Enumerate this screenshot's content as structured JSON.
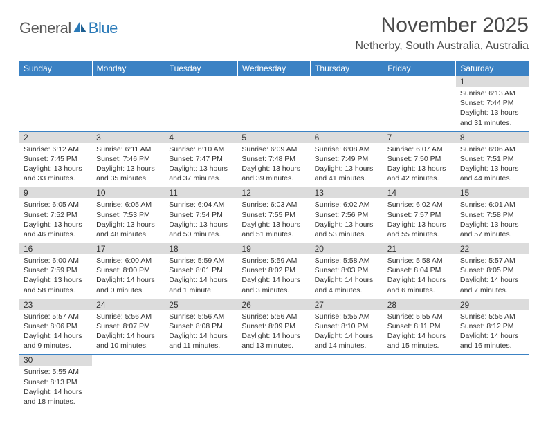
{
  "logo": {
    "general": "General",
    "blue": "Blue"
  },
  "title": "November 2025",
  "location": "Netherby, South Australia, Australia",
  "weekdays": [
    "Sunday",
    "Monday",
    "Tuesday",
    "Wednesday",
    "Thursday",
    "Friday",
    "Saturday"
  ],
  "colors": {
    "header_bg": "#3b82c4",
    "header_text": "#ffffff",
    "daynum_bg": "#dcdcdc",
    "border": "#3b82c4",
    "logo_gray": "#5a5a5a",
    "logo_blue": "#2a7ab8"
  },
  "weeks": [
    {
      "nums": [
        "",
        "",
        "",
        "",
        "",
        "",
        "1"
      ],
      "cells": [
        null,
        null,
        null,
        null,
        null,
        null,
        {
          "sunrise": "Sunrise: 6:13 AM",
          "sunset": "Sunset: 7:44 PM",
          "daylight": "Daylight: 13 hours and 31 minutes."
        }
      ]
    },
    {
      "nums": [
        "2",
        "3",
        "4",
        "5",
        "6",
        "7",
        "8"
      ],
      "cells": [
        {
          "sunrise": "Sunrise: 6:12 AM",
          "sunset": "Sunset: 7:45 PM",
          "daylight": "Daylight: 13 hours and 33 minutes."
        },
        {
          "sunrise": "Sunrise: 6:11 AM",
          "sunset": "Sunset: 7:46 PM",
          "daylight": "Daylight: 13 hours and 35 minutes."
        },
        {
          "sunrise": "Sunrise: 6:10 AM",
          "sunset": "Sunset: 7:47 PM",
          "daylight": "Daylight: 13 hours and 37 minutes."
        },
        {
          "sunrise": "Sunrise: 6:09 AM",
          "sunset": "Sunset: 7:48 PM",
          "daylight": "Daylight: 13 hours and 39 minutes."
        },
        {
          "sunrise": "Sunrise: 6:08 AM",
          "sunset": "Sunset: 7:49 PM",
          "daylight": "Daylight: 13 hours and 41 minutes."
        },
        {
          "sunrise": "Sunrise: 6:07 AM",
          "sunset": "Sunset: 7:50 PM",
          "daylight": "Daylight: 13 hours and 42 minutes."
        },
        {
          "sunrise": "Sunrise: 6:06 AM",
          "sunset": "Sunset: 7:51 PM",
          "daylight": "Daylight: 13 hours and 44 minutes."
        }
      ]
    },
    {
      "nums": [
        "9",
        "10",
        "11",
        "12",
        "13",
        "14",
        "15"
      ],
      "cells": [
        {
          "sunrise": "Sunrise: 6:05 AM",
          "sunset": "Sunset: 7:52 PM",
          "daylight": "Daylight: 13 hours and 46 minutes."
        },
        {
          "sunrise": "Sunrise: 6:05 AM",
          "sunset": "Sunset: 7:53 PM",
          "daylight": "Daylight: 13 hours and 48 minutes."
        },
        {
          "sunrise": "Sunrise: 6:04 AM",
          "sunset": "Sunset: 7:54 PM",
          "daylight": "Daylight: 13 hours and 50 minutes."
        },
        {
          "sunrise": "Sunrise: 6:03 AM",
          "sunset": "Sunset: 7:55 PM",
          "daylight": "Daylight: 13 hours and 51 minutes."
        },
        {
          "sunrise": "Sunrise: 6:02 AM",
          "sunset": "Sunset: 7:56 PM",
          "daylight": "Daylight: 13 hours and 53 minutes."
        },
        {
          "sunrise": "Sunrise: 6:02 AM",
          "sunset": "Sunset: 7:57 PM",
          "daylight": "Daylight: 13 hours and 55 minutes."
        },
        {
          "sunrise": "Sunrise: 6:01 AM",
          "sunset": "Sunset: 7:58 PM",
          "daylight": "Daylight: 13 hours and 57 minutes."
        }
      ]
    },
    {
      "nums": [
        "16",
        "17",
        "18",
        "19",
        "20",
        "21",
        "22"
      ],
      "cells": [
        {
          "sunrise": "Sunrise: 6:00 AM",
          "sunset": "Sunset: 7:59 PM",
          "daylight": "Daylight: 13 hours and 58 minutes."
        },
        {
          "sunrise": "Sunrise: 6:00 AM",
          "sunset": "Sunset: 8:00 PM",
          "daylight": "Daylight: 14 hours and 0 minutes."
        },
        {
          "sunrise": "Sunrise: 5:59 AM",
          "sunset": "Sunset: 8:01 PM",
          "daylight": "Daylight: 14 hours and 1 minute."
        },
        {
          "sunrise": "Sunrise: 5:59 AM",
          "sunset": "Sunset: 8:02 PM",
          "daylight": "Daylight: 14 hours and 3 minutes."
        },
        {
          "sunrise": "Sunrise: 5:58 AM",
          "sunset": "Sunset: 8:03 PM",
          "daylight": "Daylight: 14 hours and 4 minutes."
        },
        {
          "sunrise": "Sunrise: 5:58 AM",
          "sunset": "Sunset: 8:04 PM",
          "daylight": "Daylight: 14 hours and 6 minutes."
        },
        {
          "sunrise": "Sunrise: 5:57 AM",
          "sunset": "Sunset: 8:05 PM",
          "daylight": "Daylight: 14 hours and 7 minutes."
        }
      ]
    },
    {
      "nums": [
        "23",
        "24",
        "25",
        "26",
        "27",
        "28",
        "29"
      ],
      "cells": [
        {
          "sunrise": "Sunrise: 5:57 AM",
          "sunset": "Sunset: 8:06 PM",
          "daylight": "Daylight: 14 hours and 9 minutes."
        },
        {
          "sunrise": "Sunrise: 5:56 AM",
          "sunset": "Sunset: 8:07 PM",
          "daylight": "Daylight: 14 hours and 10 minutes."
        },
        {
          "sunrise": "Sunrise: 5:56 AM",
          "sunset": "Sunset: 8:08 PM",
          "daylight": "Daylight: 14 hours and 11 minutes."
        },
        {
          "sunrise": "Sunrise: 5:56 AM",
          "sunset": "Sunset: 8:09 PM",
          "daylight": "Daylight: 14 hours and 13 minutes."
        },
        {
          "sunrise": "Sunrise: 5:55 AM",
          "sunset": "Sunset: 8:10 PM",
          "daylight": "Daylight: 14 hours and 14 minutes."
        },
        {
          "sunrise": "Sunrise: 5:55 AM",
          "sunset": "Sunset: 8:11 PM",
          "daylight": "Daylight: 14 hours and 15 minutes."
        },
        {
          "sunrise": "Sunrise: 5:55 AM",
          "sunset": "Sunset: 8:12 PM",
          "daylight": "Daylight: 14 hours and 16 minutes."
        }
      ]
    },
    {
      "nums": [
        "30",
        "",
        "",
        "",
        "",
        "",
        ""
      ],
      "cells": [
        {
          "sunrise": "Sunrise: 5:55 AM",
          "sunset": "Sunset: 8:13 PM",
          "daylight": "Daylight: 14 hours and 18 minutes."
        },
        null,
        null,
        null,
        null,
        null,
        null
      ]
    }
  ]
}
